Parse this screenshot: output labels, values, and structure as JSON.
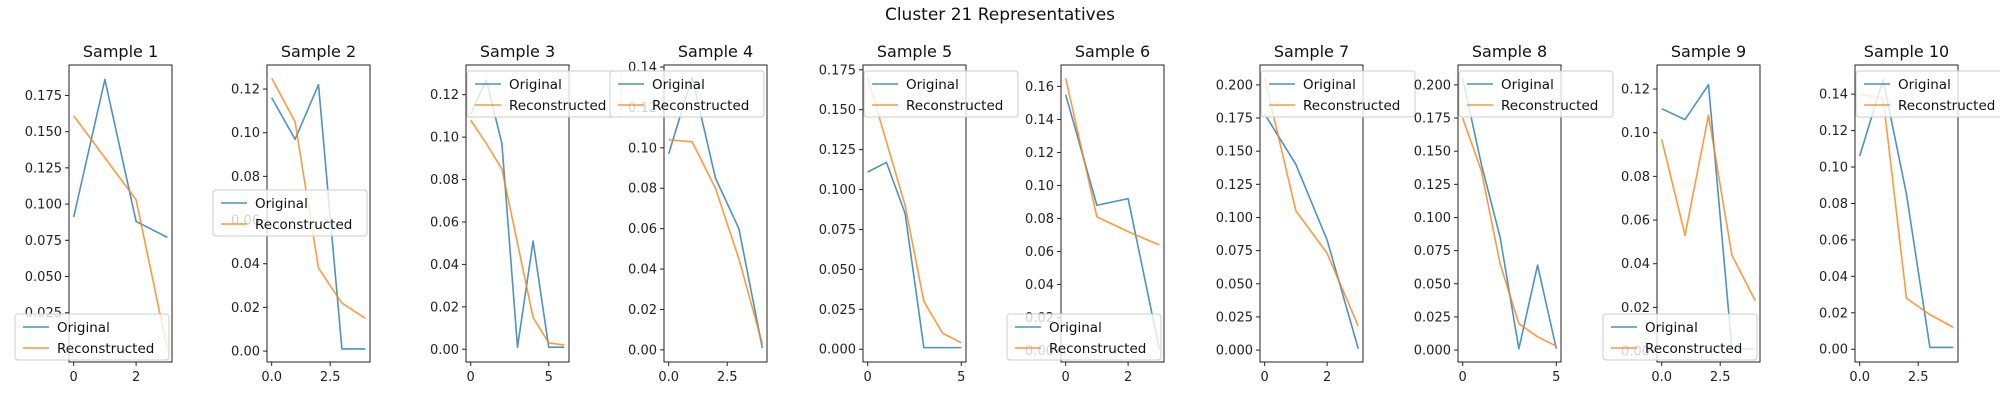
{
  "title": "Cluster 21 Representatives",
  "colors": {
    "original": "#1f77b4",
    "reconstructed": "#ff7f0e"
  },
  "chart_data": [
    {
      "type": "line",
      "title": "Sample 1",
      "x": [
        0,
        1,
        2,
        3
      ],
      "series": [
        {
          "name": "Original",
          "values": [
            0.091,
            0.186,
            0.088,
            0.077
          ]
        },
        {
          "name": "Reconstructed",
          "values": [
            0.161,
            0.132,
            0.103,
            0.0
          ]
        }
      ],
      "xlim": [
        -0.15,
        3.15
      ],
      "ylim": [
        -0.009,
        0.196
      ],
      "xticks": [
        {
          "v": 0,
          "label": "0"
        },
        {
          "v": 2,
          "label": "2"
        }
      ],
      "yticks": [
        {
          "v": 0.025,
          "label": "0.025"
        },
        {
          "v": 0.05,
          "label": "0.050"
        },
        {
          "v": 0.075,
          "label": "0.075"
        },
        {
          "v": 0.1,
          "label": "0.100"
        },
        {
          "v": 0.125,
          "label": "0.125"
        },
        {
          "v": 0.15,
          "label": "0.150"
        },
        {
          "v": 0.175,
          "label": "0.175"
        }
      ],
      "legend": "lower-left"
    },
    {
      "type": "line",
      "title": "Sample 2",
      "x": [
        0,
        1,
        2,
        3,
        4
      ],
      "series": [
        {
          "name": "Original",
          "values": [
            0.116,
            0.097,
            0.122,
            0.001,
            0.001
          ]
        },
        {
          "name": "Reconstructed",
          "values": [
            0.125,
            0.105,
            0.038,
            0.022,
            0.015
          ]
        }
      ],
      "xlim": [
        -0.2,
        4.2
      ],
      "ylim": [
        -0.005,
        0.131
      ],
      "xticks": [
        {
          "v": 0,
          "label": "0.0"
        },
        {
          "v": 2.5,
          "label": "2.5"
        }
      ],
      "yticks": [
        {
          "v": 0.0,
          "label": "0.00"
        },
        {
          "v": 0.02,
          "label": "0.02"
        },
        {
          "v": 0.04,
          "label": "0.04"
        },
        {
          "v": 0.06,
          "label": "0.06"
        },
        {
          "v": 0.08,
          "label": "0.08"
        },
        {
          "v": 0.1,
          "label": "0.10"
        },
        {
          "v": 0.12,
          "label": "0.12"
        }
      ],
      "legend": "center-left"
    },
    {
      "type": "line",
      "title": "Sample 3",
      "x": [
        0,
        1,
        2,
        3,
        4,
        5,
        6
      ],
      "series": [
        {
          "name": "Original",
          "values": [
            0.111,
            0.127,
            0.097,
            0.001,
            0.051,
            0.001,
            0.001
          ]
        },
        {
          "name": "Reconstructed",
          "values": [
            0.108,
            0.097,
            0.085,
            0.05,
            0.015,
            0.003,
            0.002
          ]
        }
      ],
      "xlim": [
        -0.3,
        6.3
      ],
      "ylim": [
        -0.006,
        0.134
      ],
      "xticks": [
        {
          "v": 0,
          "label": "0"
        },
        {
          "v": 5,
          "label": "5"
        }
      ],
      "yticks": [
        {
          "v": 0.0,
          "label": "0.00"
        },
        {
          "v": 0.02,
          "label": "0.02"
        },
        {
          "v": 0.04,
          "label": "0.04"
        },
        {
          "v": 0.06,
          "label": "0.06"
        },
        {
          "v": 0.08,
          "label": "0.08"
        },
        {
          "v": 0.1,
          "label": "0.10"
        },
        {
          "v": 0.12,
          "label": "0.12"
        }
      ],
      "legend": "upper-right"
    },
    {
      "type": "line",
      "title": "Sample 4",
      "x": [
        0,
        1,
        2,
        3,
        4
      ],
      "series": [
        {
          "name": "Original",
          "values": [
            0.097,
            0.135,
            0.085,
            0.06,
            0.001
          ]
        },
        {
          "name": "Reconstructed",
          "values": [
            0.104,
            0.103,
            0.08,
            0.045,
            0.003
          ]
        }
      ],
      "xlim": [
        -0.2,
        4.2
      ],
      "ylim": [
        -0.006,
        0.141
      ],
      "xticks": [
        {
          "v": 0,
          "label": "0.0"
        },
        {
          "v": 2.5,
          "label": "2.5"
        }
      ],
      "yticks": [
        {
          "v": 0.0,
          "label": "0.00"
        },
        {
          "v": 0.02,
          "label": "0.02"
        },
        {
          "v": 0.04,
          "label": "0.04"
        },
        {
          "v": 0.06,
          "label": "0.06"
        },
        {
          "v": 0.08,
          "label": "0.08"
        },
        {
          "v": 0.1,
          "label": "0.10"
        },
        {
          "v": 0.12,
          "label": "0.12"
        },
        {
          "v": 0.14,
          "label": "0.14"
        }
      ],
      "legend": "upper-left"
    },
    {
      "type": "line",
      "title": "Sample 5",
      "x": [
        0,
        1,
        2,
        3,
        4,
        5
      ],
      "series": [
        {
          "name": "Original",
          "values": [
            0.111,
            0.117,
            0.085,
            0.001,
            0.001,
            0.001
          ]
        },
        {
          "name": "Reconstructed",
          "values": [
            0.17,
            0.13,
            0.09,
            0.03,
            0.01,
            0.004
          ]
        }
      ],
      "xlim": [
        -0.25,
        5.25
      ],
      "ylim": [
        -0.008,
        0.178
      ],
      "xticks": [
        {
          "v": 0,
          "label": "0"
        },
        {
          "v": 5,
          "label": "5"
        }
      ],
      "yticks": [
        {
          "v": 0.0,
          "label": "0.000"
        },
        {
          "v": 0.025,
          "label": "0.025"
        },
        {
          "v": 0.05,
          "label": "0.050"
        },
        {
          "v": 0.075,
          "label": "0.075"
        },
        {
          "v": 0.1,
          "label": "0.100"
        },
        {
          "v": 0.125,
          "label": "0.125"
        },
        {
          "v": 0.15,
          "label": "0.150"
        },
        {
          "v": 0.175,
          "label": "0.175"
        }
      ],
      "legend": "upper-right"
    },
    {
      "type": "line",
      "title": "Sample 6",
      "x": [
        0,
        1,
        2,
        3
      ],
      "series": [
        {
          "name": "Original",
          "values": [
            0.155,
            0.088,
            0.092,
            0.001
          ]
        },
        {
          "name": "Reconstructed",
          "values": [
            0.165,
            0.081,
            0.072,
            0.064
          ]
        }
      ],
      "xlim": [
        -0.15,
        3.15
      ],
      "ylim": [
        -0.007,
        0.173
      ],
      "xticks": [
        {
          "v": 0,
          "label": "0"
        },
        {
          "v": 2,
          "label": "2"
        }
      ],
      "yticks": [
        {
          "v": 0.0,
          "label": "0.00"
        },
        {
          "v": 0.02,
          "label": "0.02"
        },
        {
          "v": 0.04,
          "label": "0.04"
        },
        {
          "v": 0.06,
          "label": "0.06"
        },
        {
          "v": 0.08,
          "label": "0.08"
        },
        {
          "v": 0.1,
          "label": "0.10"
        },
        {
          "v": 0.12,
          "label": "0.12"
        },
        {
          "v": 0.14,
          "label": "0.14"
        },
        {
          "v": 0.16,
          "label": "0.16"
        }
      ],
      "legend": "lower-left"
    },
    {
      "type": "line",
      "title": "Sample 7",
      "x": [
        0,
        1,
        2,
        3
      ],
      "series": [
        {
          "name": "Original",
          "values": [
            0.178,
            0.14,
            0.083,
            0.001
          ]
        },
        {
          "name": "Reconstructed",
          "values": [
            0.205,
            0.105,
            0.073,
            0.018
          ]
        }
      ],
      "xlim": [
        -0.15,
        3.15
      ],
      "ylim": [
        -0.009,
        0.215
      ],
      "xticks": [
        {
          "v": 0,
          "label": "0"
        },
        {
          "v": 2,
          "label": "2"
        }
      ],
      "yticks": [
        {
          "v": 0.0,
          "label": "0.000"
        },
        {
          "v": 0.025,
          "label": "0.025"
        },
        {
          "v": 0.05,
          "label": "0.050"
        },
        {
          "v": 0.075,
          "label": "0.075"
        },
        {
          "v": 0.1,
          "label": "0.100"
        },
        {
          "v": 0.125,
          "label": "0.125"
        },
        {
          "v": 0.15,
          "label": "0.150"
        },
        {
          "v": 0.175,
          "label": "0.175"
        },
        {
          "v": 0.2,
          "label": "0.200"
        }
      ],
      "legend": "upper-right"
    },
    {
      "type": "line",
      "title": "Sample 8",
      "x": [
        0,
        1,
        2,
        3,
        4,
        5
      ],
      "series": [
        {
          "name": "Original",
          "values": [
            0.205,
            0.14,
            0.085,
            0.001,
            0.064,
            0.001
          ]
        },
        {
          "name": "Reconstructed",
          "values": [
            0.175,
            0.135,
            0.065,
            0.02,
            0.01,
            0.003
          ]
        }
      ],
      "xlim": [
        -0.25,
        5.25
      ],
      "ylim": [
        -0.009,
        0.215
      ],
      "xticks": [
        {
          "v": 0,
          "label": "0"
        },
        {
          "v": 5,
          "label": "5"
        }
      ],
      "yticks": [
        {
          "v": 0.0,
          "label": "0.000"
        },
        {
          "v": 0.025,
          "label": "0.025"
        },
        {
          "v": 0.05,
          "label": "0.050"
        },
        {
          "v": 0.075,
          "label": "0.075"
        },
        {
          "v": 0.1,
          "label": "0.100"
        },
        {
          "v": 0.125,
          "label": "0.125"
        },
        {
          "v": 0.15,
          "label": "0.150"
        },
        {
          "v": 0.175,
          "label": "0.175"
        },
        {
          "v": 0.2,
          "label": "0.200"
        }
      ],
      "legend": "upper-right"
    },
    {
      "type": "line",
      "title": "Sample 9",
      "x": [
        0,
        1,
        2,
        3,
        4
      ],
      "series": [
        {
          "name": "Original",
          "values": [
            0.111,
            0.106,
            0.122,
            0.001,
            0.001
          ]
        },
        {
          "name": "Reconstructed",
          "values": [
            0.097,
            0.053,
            0.108,
            0.044,
            0.023
          ]
        }
      ],
      "xlim": [
        -0.2,
        4.2
      ],
      "ylim": [
        -0.005,
        0.131
      ],
      "xticks": [
        {
          "v": 0,
          "label": "0.0"
        },
        {
          "v": 2.5,
          "label": "2.5"
        }
      ],
      "yticks": [
        {
          "v": 0.0,
          "label": "0.00"
        },
        {
          "v": 0.02,
          "label": "0.02"
        },
        {
          "v": 0.04,
          "label": "0.04"
        },
        {
          "v": 0.06,
          "label": "0.06"
        },
        {
          "v": 0.08,
          "label": "0.08"
        },
        {
          "v": 0.1,
          "label": "0.10"
        },
        {
          "v": 0.12,
          "label": "0.12"
        }
      ],
      "legend": "lower-right"
    },
    {
      "type": "line",
      "title": "Sample 10",
      "x": [
        0,
        1,
        2,
        3,
        4
      ],
      "series": [
        {
          "name": "Original",
          "values": [
            0.106,
            0.148,
            0.085,
            0.001,
            0.001
          ]
        },
        {
          "name": "Reconstructed",
          "values": [
            0.14,
            0.138,
            0.028,
            0.019,
            0.012
          ]
        }
      ],
      "xlim": [
        -0.2,
        4.2
      ],
      "ylim": [
        -0.007,
        0.156
      ],
      "xticks": [
        {
          "v": 0,
          "label": "0.0"
        },
        {
          "v": 2.5,
          "label": "2.5"
        }
      ],
      "yticks": [
        {
          "v": 0.0,
          "label": "0.00"
        },
        {
          "v": 0.02,
          "label": "0.02"
        },
        {
          "v": 0.04,
          "label": "0.04"
        },
        {
          "v": 0.06,
          "label": "0.06"
        },
        {
          "v": 0.08,
          "label": "0.08"
        },
        {
          "v": 0.1,
          "label": "0.10"
        },
        {
          "v": 0.12,
          "label": "0.12"
        },
        {
          "v": 0.14,
          "label": "0.14"
        }
      ],
      "legend": "upper-right"
    }
  ]
}
